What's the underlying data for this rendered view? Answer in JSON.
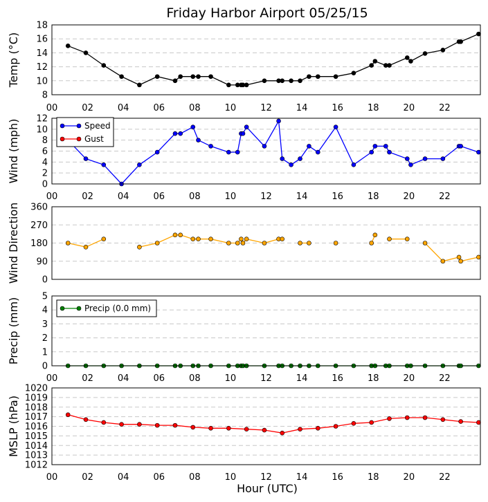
{
  "title": "Friday Harbor Airport 05/25/15",
  "xlabel": "Hour (UTC)",
  "x_ticks": [
    "00",
    "02",
    "04",
    "06",
    "08",
    "10",
    "12",
    "14",
    "16",
    "18",
    "20",
    "22"
  ],
  "chart_data": [
    {
      "type": "line",
      "ylabel": "Temp (°C)",
      "ylim": [
        8,
        18
      ],
      "yticks": [
        8,
        10,
        12,
        14,
        16,
        18
      ],
      "show_x_ticks": false,
      "grid": true,
      "series": [
        {
          "color": "#000000",
          "x": [
            0.9,
            1.9,
            2.9,
            3.9,
            4.9,
            5.9,
            6.9,
            7.2,
            7.9,
            8.2,
            8.9,
            9.9,
            10.4,
            10.6,
            10.7,
            10.9,
            11.9,
            12.7,
            12.9,
            13.4,
            13.9,
            14.4,
            14.9,
            15.9,
            16.9,
            17.9,
            18.1,
            18.7,
            18.9,
            19.9,
            20.1,
            20.9,
            21.9,
            22.8,
            22.9,
            23.9
          ],
          "y": [
            15.0,
            14.0,
            12.2,
            10.6,
            9.4,
            10.6,
            10.0,
            10.6,
            10.6,
            10.6,
            10.6,
            9.4,
            9.4,
            9.4,
            9.4,
            9.4,
            10.0,
            10.0,
            10.0,
            10.0,
            10.0,
            10.6,
            10.6,
            10.6,
            11.1,
            12.2,
            12.8,
            12.2,
            12.2,
            13.3,
            12.8,
            13.9,
            14.4,
            15.6,
            15.6,
            16.7
          ]
        }
      ]
    },
    {
      "type": "line",
      "ylabel": "Wind (mph)",
      "ylim": [
        0,
        12
      ],
      "yticks": [
        0,
        2,
        4,
        6,
        8,
        10,
        12
      ],
      "show_x_ticks": true,
      "grid": true,
      "legend": [
        "Speed",
        "Gust"
      ],
      "legend_position": "upper-left",
      "series": [
        {
          "name": "Speed",
          "color": "#0000ff",
          "x": [
            0.9,
            1.9,
            2.9,
            3.9,
            4.9,
            5.9,
            6.9,
            7.2,
            7.9,
            8.2,
            8.9,
            9.9,
            10.4,
            10.6,
            10.7,
            10.9,
            11.9,
            12.7,
            12.9,
            13.4,
            13.9,
            14.4,
            14.9,
            15.9,
            16.9,
            17.9,
            18.1,
            18.7,
            18.9,
            19.9,
            20.1,
            20.9,
            21.9,
            22.8,
            22.9,
            23.9
          ],
          "y": [
            8.0,
            4.6,
            3.5,
            0.0,
            3.5,
            5.8,
            9.2,
            9.2,
            10.4,
            8.0,
            6.9,
            5.8,
            5.8,
            9.2,
            9.2,
            10.4,
            6.9,
            11.5,
            4.6,
            3.5,
            4.6,
            6.9,
            5.8,
            10.4,
            3.5,
            5.8,
            6.9,
            6.9,
            5.8,
            4.6,
            3.5,
            4.6,
            4.6,
            6.9,
            6.9,
            5.8
          ]
        },
        {
          "name": "Gust",
          "color": "#ff0000",
          "x": [],
          "y": []
        }
      ]
    },
    {
      "type": "line",
      "ylabel": "Wind Direction",
      "ylim": [
        0,
        360
      ],
      "yticks": [
        0,
        90,
        180,
        270,
        360
      ],
      "show_x_ticks": false,
      "grid": true,
      "series": [
        {
          "color": "#ffa500",
          "segments": [
            {
              "x": [
                0.9,
                1.9,
                2.9
              ],
              "y": [
                180,
                160,
                200
              ]
            },
            {
              "x": [
                4.9,
                5.9,
                6.9,
                7.2,
                7.9,
                8.2,
                8.9,
                9.9,
                10.4,
                10.6,
                10.7,
                10.9,
                11.9,
                12.7,
                12.9
              ],
              "y": [
                160,
                180,
                220,
                220,
                200,
                200,
                200,
                180,
                180,
                200,
                180,
                200,
                180,
                200,
                200
              ]
            },
            {
              "x": [
                13.9,
                14.4
              ],
              "y": [
                180,
                180
              ]
            },
            {
              "x": [
                15.9
              ],
              "y": [
                180
              ]
            },
            {
              "x": [
                17.9,
                18.1
              ],
              "y": [
                180,
                220
              ]
            },
            {
              "x": [
                18.9,
                19.9
              ],
              "y": [
                200,
                200
              ]
            },
            {
              "x": [
                20.9,
                21.9,
                22.8,
                22.9,
                23.9
              ],
              "y": [
                180,
                90,
                110,
                90,
                110
              ]
            }
          ]
        }
      ]
    },
    {
      "type": "line",
      "ylabel": "Precip (mm)",
      "ylim": [
        0,
        5
      ],
      "yticks": [
        0,
        1,
        2,
        3,
        4,
        5
      ],
      "show_x_ticks": true,
      "grid": true,
      "legend": [
        "Precip (0.0 mm)"
      ],
      "legend_position": "upper-left",
      "series": [
        {
          "name": "Precip (0.0 mm)",
          "color": "#008000",
          "x": [
            0.9,
            1.9,
            2.9,
            3.9,
            4.9,
            5.9,
            6.9,
            7.2,
            7.9,
            8.2,
            8.9,
            9.9,
            10.4,
            10.6,
            10.7,
            10.9,
            11.9,
            12.7,
            12.9,
            13.4,
            13.9,
            14.4,
            14.9,
            15.9,
            16.9,
            17.9,
            18.1,
            18.7,
            18.9,
            19.9,
            20.1,
            20.9,
            21.9,
            22.8,
            22.9,
            23.9
          ],
          "y": [
            0,
            0,
            0,
            0,
            0,
            0,
            0,
            0,
            0,
            0,
            0,
            0,
            0,
            0,
            0,
            0,
            0,
            0,
            0,
            0,
            0,
            0,
            0,
            0,
            0,
            0,
            0,
            0,
            0,
            0,
            0,
            0,
            0,
            0,
            0,
            0
          ]
        }
      ]
    },
    {
      "type": "line",
      "ylabel": "MSLP (hPa)",
      "ylim": [
        1012,
        1020
      ],
      "yticks": [
        1012,
        1013,
        1014,
        1015,
        1016,
        1017,
        1018,
        1019,
        1020
      ],
      "show_x_ticks": true,
      "grid": true,
      "series": [
        {
          "color": "#ff0000",
          "x": [
            0.9,
            1.9,
            2.9,
            3.9,
            4.9,
            5.9,
            6.9,
            7.9,
            8.9,
            9.9,
            10.9,
            11.9,
            12.9,
            13.9,
            14.9,
            15.9,
            16.9,
            17.9,
            18.9,
            19.9,
            20.9,
            21.9,
            22.9,
            23.9
          ],
          "y": [
            1017.2,
            1016.7,
            1016.4,
            1016.2,
            1016.2,
            1016.1,
            1016.1,
            1015.9,
            1015.8,
            1015.8,
            1015.7,
            1015.6,
            1015.3,
            1015.7,
            1015.8,
            1016.0,
            1016.3,
            1016.4,
            1016.8,
            1016.9,
            1016.9,
            1016.7,
            1016.5,
            1016.4
          ]
        }
      ]
    }
  ]
}
